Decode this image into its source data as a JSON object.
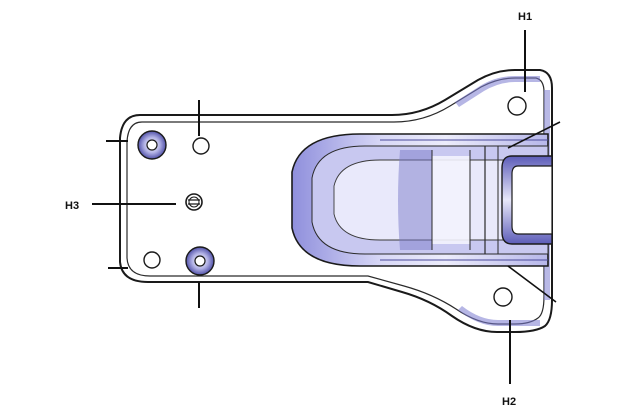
{
  "diagram": {
    "labels": {
      "h1": "H1",
      "h2": "H2",
      "h3": "H3"
    },
    "colors": {
      "background": "#ffffff",
      "outline": "#1a1a1a",
      "shade_light": "#d9d9f4",
      "shade_mid": "#a9a9e6",
      "shade_dark": "#6d6dc4",
      "shade_deep": "#4b4b9a",
      "callout": "#111111"
    }
  }
}
